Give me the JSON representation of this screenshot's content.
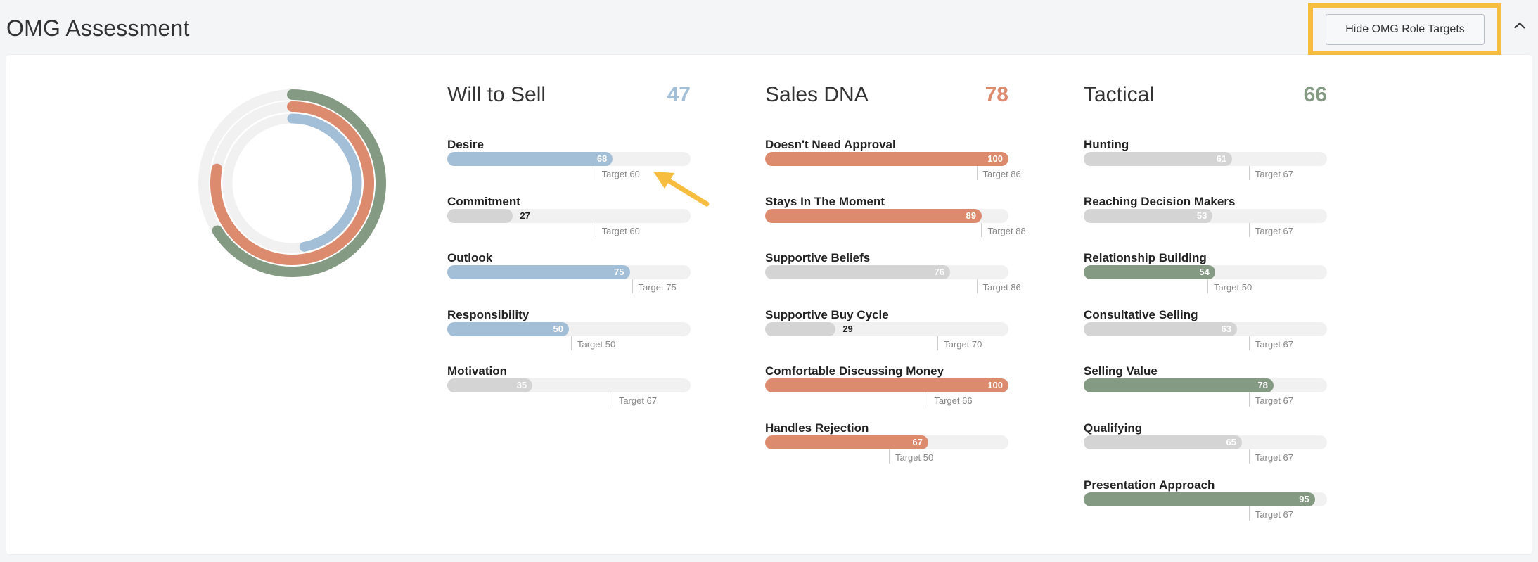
{
  "header": {
    "title": "OMG Assessment",
    "toggle_targets_label": "Hide OMG Role Targets"
  },
  "colors": {
    "will_to_sell": "#a3bfd8",
    "sales_dna": "#dd8b6e",
    "tactical": "#849a82",
    "below_target": "#d4d4d4",
    "track": "#f1f1f2",
    "highlight": "#f6bd3f"
  },
  "columns": [
    {
      "title": "Will to Sell",
      "score": "47",
      "color": "#a3bfd8",
      "metrics": [
        {
          "name": "Desire",
          "value": 68,
          "value_label": "68",
          "target": 60,
          "target_label": "Target 60",
          "met": true
        },
        {
          "name": "Commitment",
          "value": 27,
          "value_label": "27",
          "target": 60,
          "target_label": "Target 60",
          "met": false
        },
        {
          "name": "Outlook",
          "value": 75,
          "value_label": "75",
          "target": 75,
          "target_label": "Target 75",
          "met": true
        },
        {
          "name": "Responsibility",
          "value": 50,
          "value_label": "50",
          "target": 50,
          "target_label": "Target 50",
          "met": true
        },
        {
          "name": "Motivation",
          "value": 35,
          "value_label": "35",
          "target": 67,
          "target_label": "Target 67",
          "met": false
        }
      ]
    },
    {
      "title": "Sales DNA",
      "score": "78",
      "color": "#dd8b6e",
      "metrics": [
        {
          "name": "Doesn't Need Approval",
          "value": 100,
          "value_label": "100",
          "target": 86,
          "target_label": "Target 86",
          "met": true
        },
        {
          "name": "Stays In The Moment",
          "value": 89,
          "value_label": "89",
          "target": 88,
          "target_label": "Target 88",
          "met": true
        },
        {
          "name": "Supportive Beliefs",
          "value": 76,
          "value_label": "76",
          "target": 86,
          "target_label": "Target 86",
          "met": false
        },
        {
          "name": "Supportive Buy Cycle",
          "value": 29,
          "value_label": "29",
          "target": 70,
          "target_label": "Target 70",
          "met": false
        },
        {
          "name": "Comfortable Discussing Money",
          "value": 100,
          "value_label": "100",
          "target": 66,
          "target_label": "Target 66",
          "met": true
        },
        {
          "name": "Handles Rejection",
          "value": 67,
          "value_label": "67",
          "target": 50,
          "target_label": "Target 50",
          "met": true
        }
      ]
    },
    {
      "title": "Tactical",
      "score": "66",
      "color": "#849a82",
      "metrics": [
        {
          "name": "Hunting",
          "value": 61,
          "value_label": "61",
          "target": 67,
          "target_label": "Target 67",
          "met": false
        },
        {
          "name": "Reaching Decision Makers",
          "value": 53,
          "value_label": "53",
          "target": 67,
          "target_label": "Target 67",
          "met": false
        },
        {
          "name": "Relationship Building",
          "value": 54,
          "value_label": "54",
          "target": 50,
          "target_label": "Target 50",
          "met": true
        },
        {
          "name": "Consultative Selling",
          "value": 63,
          "value_label": "63",
          "target": 67,
          "target_label": "Target 67",
          "met": false
        },
        {
          "name": "Selling Value",
          "value": 78,
          "value_label": "78",
          "target": 67,
          "target_label": "Target 67",
          "met": true
        },
        {
          "name": "Qualifying",
          "value": 65,
          "value_label": "65",
          "target": 67,
          "target_label": "Target 67",
          "met": false
        },
        {
          "name": "Presentation Approach",
          "value": 95,
          "value_label": "95",
          "target": 67,
          "target_label": "Target 67",
          "met": true
        }
      ]
    }
  ],
  "donut": {
    "rings": [
      {
        "name": "Tactical",
        "value": 66,
        "color": "#849a82"
      },
      {
        "name": "Sales DNA",
        "value": 78,
        "color": "#dd8b6e"
      },
      {
        "name": "Will to Sell",
        "value": 47,
        "color": "#a3bfd8"
      }
    ]
  },
  "icons": {
    "collapse": "chevron-up-icon",
    "annotation": "arrow-annotation-icon"
  }
}
